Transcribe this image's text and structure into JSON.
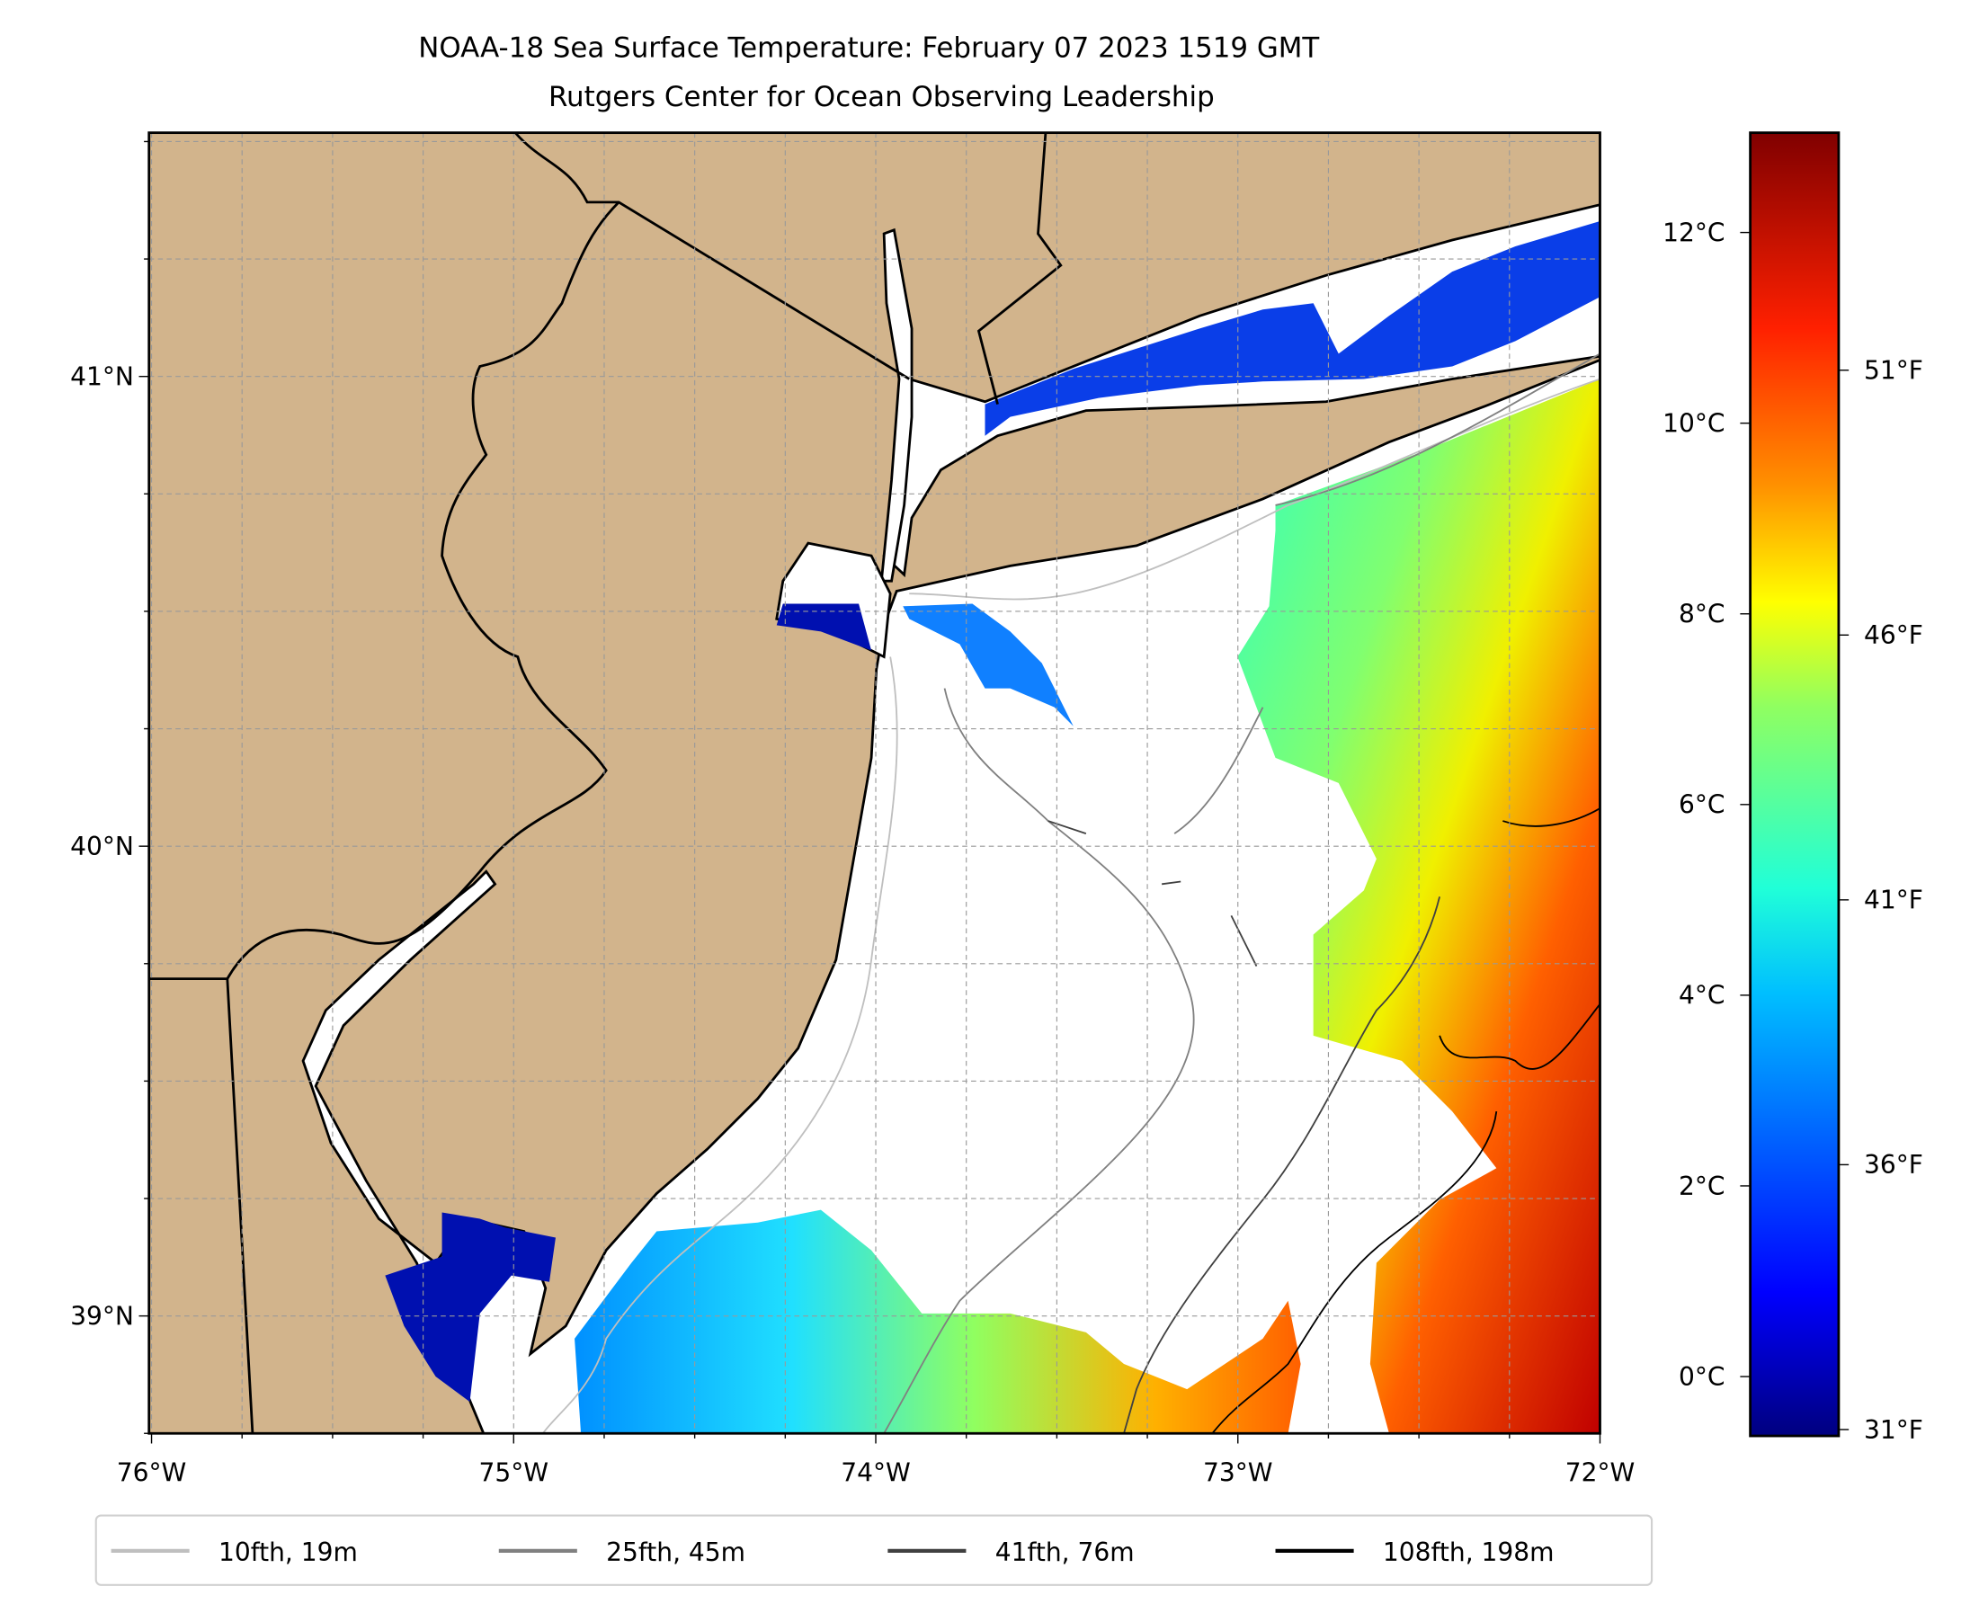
{
  "title": {
    "line1": "NOAA-18 Sea Surface Temperature: February 07 2023 1519 GMT",
    "line2": "Rutgers Center for Ocean Observing Leadership"
  },
  "chart_data": {
    "type": "heatmap",
    "title": "NOAA-18 Sea Surface Temperature: February 07 2023 1519 GMT",
    "subtitle": "Rutgers Center for Ocean Observing Leadership",
    "xlabel": "",
    "ylabel": "",
    "xlim": [
      -76,
      -72
    ],
    "ylim": [
      38.75,
      41.52
    ],
    "x_ticks": [
      {
        "value": -76,
        "label": "76°W"
      },
      {
        "value": -75,
        "label": "75°W"
      },
      {
        "value": -74,
        "label": "74°W"
      },
      {
        "value": -73,
        "label": "73°W"
      },
      {
        "value": -72,
        "label": "72°W"
      }
    ],
    "y_ticks": [
      {
        "value": 39,
        "label": "39°N"
      },
      {
        "value": 40,
        "label": "40°N"
      },
      {
        "value": 41,
        "label": "41°N"
      }
    ],
    "grid": true,
    "colorbar": {
      "colormap": "jet",
      "range_c": [
        -0.6,
        13.05
      ],
      "ticks_c": [
        {
          "value": 0,
          "label": "0°C"
        },
        {
          "value": 2,
          "label": "2°C"
        },
        {
          "value": 4,
          "label": "4°C"
        },
        {
          "value": 6,
          "label": "6°C"
        },
        {
          "value": 8,
          "label": "8°C"
        },
        {
          "value": 10,
          "label": "10°C"
        },
        {
          "value": 12,
          "label": "12°C"
        }
      ],
      "ticks_f": [
        {
          "value": 31,
          "label": "31°F"
        },
        {
          "value": 36,
          "label": "36°F"
        },
        {
          "value": 41,
          "label": "41°F"
        },
        {
          "value": 46,
          "label": "46°F"
        },
        {
          "value": 51,
          "label": "51°F"
        }
      ]
    },
    "legend": {
      "placement": "bottom",
      "entries": [
        {
          "label": "10fth, 19m",
          "color": "#bfbfbf"
        },
        {
          "label": "25fth, 45m",
          "color": "#808080"
        },
        {
          "label": "41fth, 76m",
          "color": "#404040"
        },
        {
          "label": "108fth, 198m",
          "color": "#000000"
        }
      ]
    }
  },
  "colors": {
    "land": "#d2b48c",
    "water": "#ffffff",
    "coast": "#000000"
  }
}
